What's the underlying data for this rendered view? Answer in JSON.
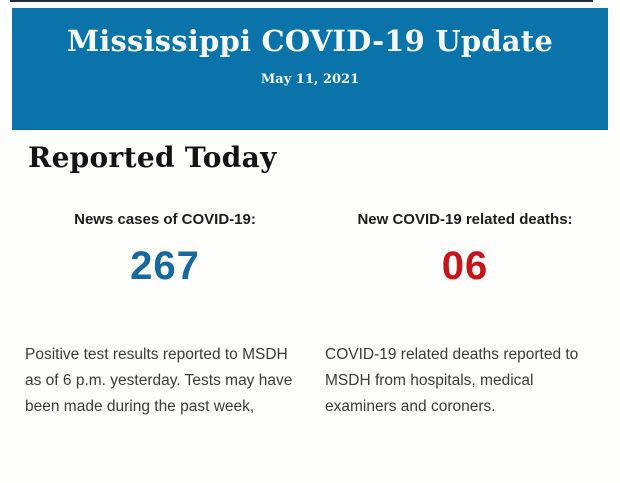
{
  "page": {
    "background": "#fdfdfc",
    "top_line_color": "#222d36"
  },
  "header": {
    "background": "#0a73a9",
    "text_color": "#f4f8f6",
    "title": "Mississippi COVID-19 Update",
    "date": "May 11, 2021"
  },
  "main": {
    "heading": "Reported Today",
    "stats": [
      {
        "label": "News cases of COVID-19:",
        "value": "267",
        "value_color": "#17689c",
        "description": "Positive test results reported to MSDH as of 6 p.m. yesterday. Tests may have been made during the past week,"
      },
      {
        "label": "New COVID-19 related deaths:",
        "value": "06",
        "value_color": "#c5151b",
        "description": "COVID-19 related deaths reported to MSDH from hospitals, medical examiners and coroners."
      }
    ]
  }
}
